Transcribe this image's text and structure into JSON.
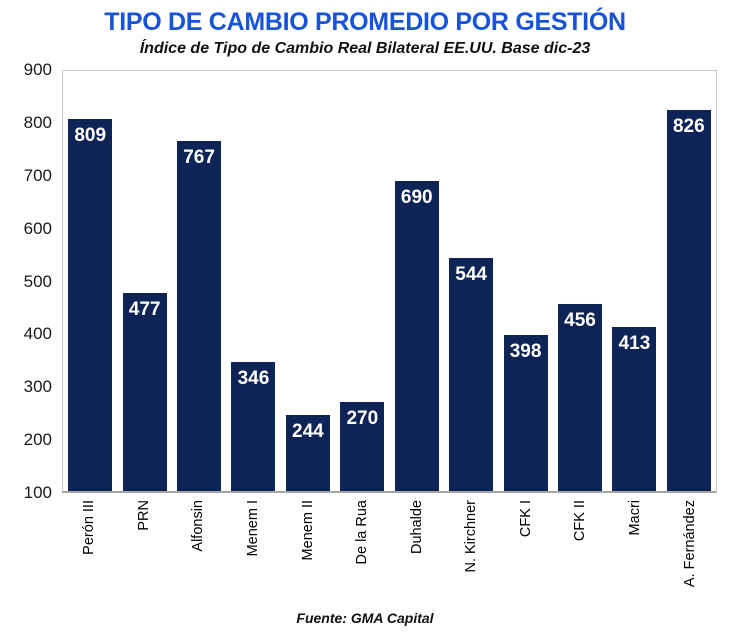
{
  "header": {
    "title": "TIPO DE CAMBIO PROMEDIO POR GESTIÓN",
    "subtitle": "Índice de Tipo de Cambio Real Bilateral EE.UU. Base dic-23"
  },
  "footer": {
    "source": "Fuente: GMA Capital"
  },
  "colors": {
    "title_blue": "#1754da",
    "bar_navy": "#0e2356",
    "bar_label_white": "#ffffff",
    "plot_border_gray": "#c9c9c9",
    "axis_line_gray": "#a6a6a6",
    "text_dark": "#111111"
  },
  "chart_data": {
    "type": "bar",
    "title": "TIPO DE CAMBIO PROMEDIO POR GESTIÓN",
    "subtitle": "Índice de Tipo de Cambio Real Bilateral EE.UU. Base dic-23",
    "source": "Fuente: GMA Capital",
    "categories": [
      "Perón III",
      "PRN",
      "Alfonsin",
      "Menem I",
      "Menem II",
      "De la Rua",
      "Duhalde",
      "N. Kirchner",
      "CFK I",
      "CFK II",
      "Macri",
      "A. Fernández"
    ],
    "values": [
      809,
      477,
      767,
      346,
      244,
      270,
      690,
      544,
      398,
      456,
      413,
      826
    ],
    "xlabel": "",
    "ylabel": "",
    "ylim": [
      100,
      900
    ],
    "yticks": [
      900,
      800,
      700,
      600,
      500,
      400,
      300,
      200,
      100
    ],
    "grid": false,
    "legend": false,
    "bar_color": "#0e2356",
    "data_label_position": "inside-top",
    "data_label_color": "#ffffff",
    "xlabel_rotation_degrees": 90
  }
}
